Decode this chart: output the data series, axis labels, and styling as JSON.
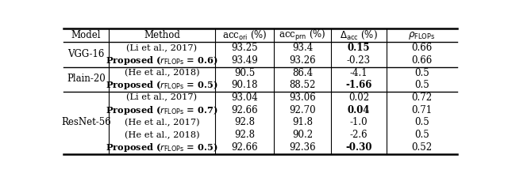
{
  "rows": [
    {
      "model": "VGG-16",
      "method": "(Li et al., 2017)",
      "method_bold": false,
      "acc_ori": "93.25",
      "acc_prn": "93.4",
      "delta_acc": "0.15",
      "delta_bold": true,
      "rho": "0.66",
      "model_rowspan": 2
    },
    {
      "model": "",
      "method": "Proposed ($r_{\\mathrm{FLOPs}}$ = 0.6)",
      "method_bold": true,
      "acc_ori": "93.49",
      "acc_prn": "93.26",
      "delta_acc": "-0.23",
      "delta_bold": false,
      "rho": "0.66",
      "model_rowspan": 0
    },
    {
      "model": "Plain-20",
      "method": "(He et al., 2018)",
      "method_bold": false,
      "acc_ori": "90.5",
      "acc_prn": "86.4",
      "delta_acc": "-4.1",
      "delta_bold": false,
      "rho": "0.5",
      "model_rowspan": 2
    },
    {
      "model": "",
      "method": "Proposed ($r_{\\mathrm{FLOPs}}$ = 0.5)",
      "method_bold": true,
      "acc_ori": "90.18",
      "acc_prn": "88.52",
      "delta_acc": "-1.66",
      "delta_bold": true,
      "rho": "0.5",
      "model_rowspan": 0
    },
    {
      "model": "ResNet-56",
      "method": "(Li et al., 2017)",
      "method_bold": false,
      "acc_ori": "93.04",
      "acc_prn": "93.06",
      "delta_acc": "0.02",
      "delta_bold": false,
      "rho": "0.72",
      "model_rowspan": 5
    },
    {
      "model": "",
      "method": "Proposed ($r_{\\mathrm{FLOPs}}$ = 0.7)",
      "method_bold": true,
      "acc_ori": "92.66",
      "acc_prn": "92.70",
      "delta_acc": "0.04",
      "delta_bold": true,
      "rho": "0.71",
      "model_rowspan": 0
    },
    {
      "model": "",
      "method": "(He et al., 2017)",
      "method_bold": false,
      "acc_ori": "92.8",
      "acc_prn": "91.8",
      "delta_acc": "-1.0",
      "delta_bold": false,
      "rho": "0.5",
      "model_rowspan": 0
    },
    {
      "model": "",
      "method": "(He et al., 2018)",
      "method_bold": false,
      "acc_ori": "92.8",
      "acc_prn": "90.2",
      "delta_acc": "-2.6",
      "delta_bold": false,
      "rho": "0.5",
      "model_rowspan": 0
    },
    {
      "model": "",
      "method": "Proposed ($r_{\\mathrm{FLOPs}}$ = 0.5)",
      "method_bold": true,
      "acc_ori": "92.66",
      "acc_prn": "92.36",
      "delta_acc": "-0.30",
      "delta_bold": true,
      "rho": "0.52",
      "model_rowspan": 0
    }
  ],
  "group_separators": [
    2,
    4
  ],
  "figsize": [
    6.4,
    2.15
  ],
  "dpi": 100,
  "background_color": "#ffffff"
}
